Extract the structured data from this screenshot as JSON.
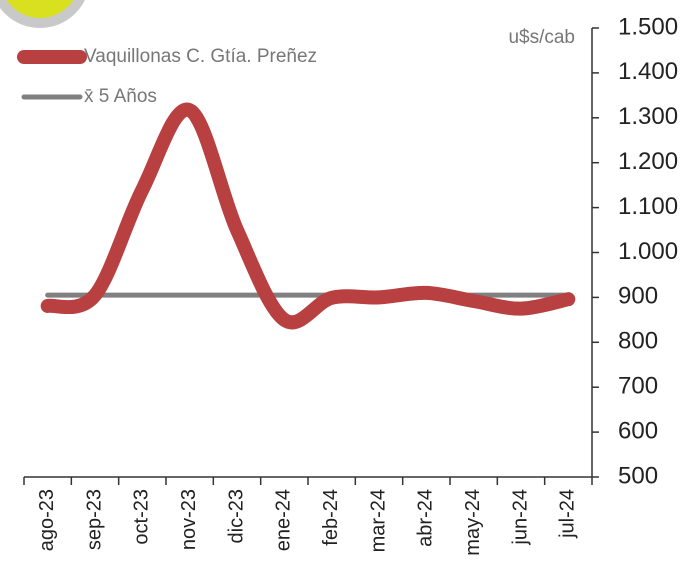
{
  "chart_data": {
    "type": "line",
    "y_label": "u$s/cab",
    "categories": [
      "ago-23",
      "sep-23",
      "oct-23",
      "nov-23",
      "dic-23",
      "ene-24",
      "feb-24",
      "mar-24",
      "abr-24",
      "may-24",
      "jun-24",
      "jul-24"
    ],
    "series": [
      {
        "name": "Vaquillonas C. Gtía. Preñez",
        "color": "#b84040",
        "values": [
          881,
          905,
          1140,
          1317,
          1050,
          850,
          899,
          900,
          910,
          892,
          875,
          896
        ]
      },
      {
        "name": "x̄ 5 Años",
        "color": "#808080",
        "values": [
          905,
          905,
          905,
          905,
          905,
          905,
          905,
          905,
          905,
          905,
          905,
          905
        ]
      }
    ],
    "ylim": [
      500,
      1500
    ],
    "yticks": [
      500,
      600,
      700,
      800,
      900,
      {
        "value": 1000,
        "label": "1.000"
      },
      {
        "value": 1100,
        "label": "1.100"
      },
      {
        "value": 1200,
        "label": "1.200"
      },
      {
        "value": 1300,
        "label": "1.300"
      },
      {
        "value": 1400,
        "label": "1.400"
      },
      {
        "value": 1500,
        "label": "1.500"
      }
    ]
  }
}
